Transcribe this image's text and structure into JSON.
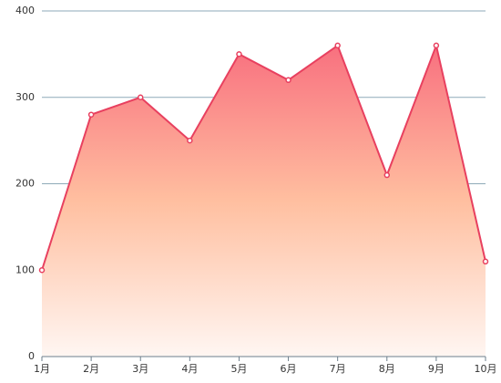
{
  "chart_data": {
    "type": "area",
    "categories": [
      "1月",
      "2月",
      "3月",
      "4月",
      "5月",
      "6月",
      "7月",
      "8月",
      "9月",
      "10月"
    ],
    "values": [
      100,
      280,
      300,
      250,
      350,
      320,
      360,
      210,
      360,
      110
    ],
    "color": "#e8405f",
    "ylim": [
      0,
      400
    ],
    "yticks": [
      0,
      100,
      200,
      300,
      400
    ],
    "grid": true
  }
}
